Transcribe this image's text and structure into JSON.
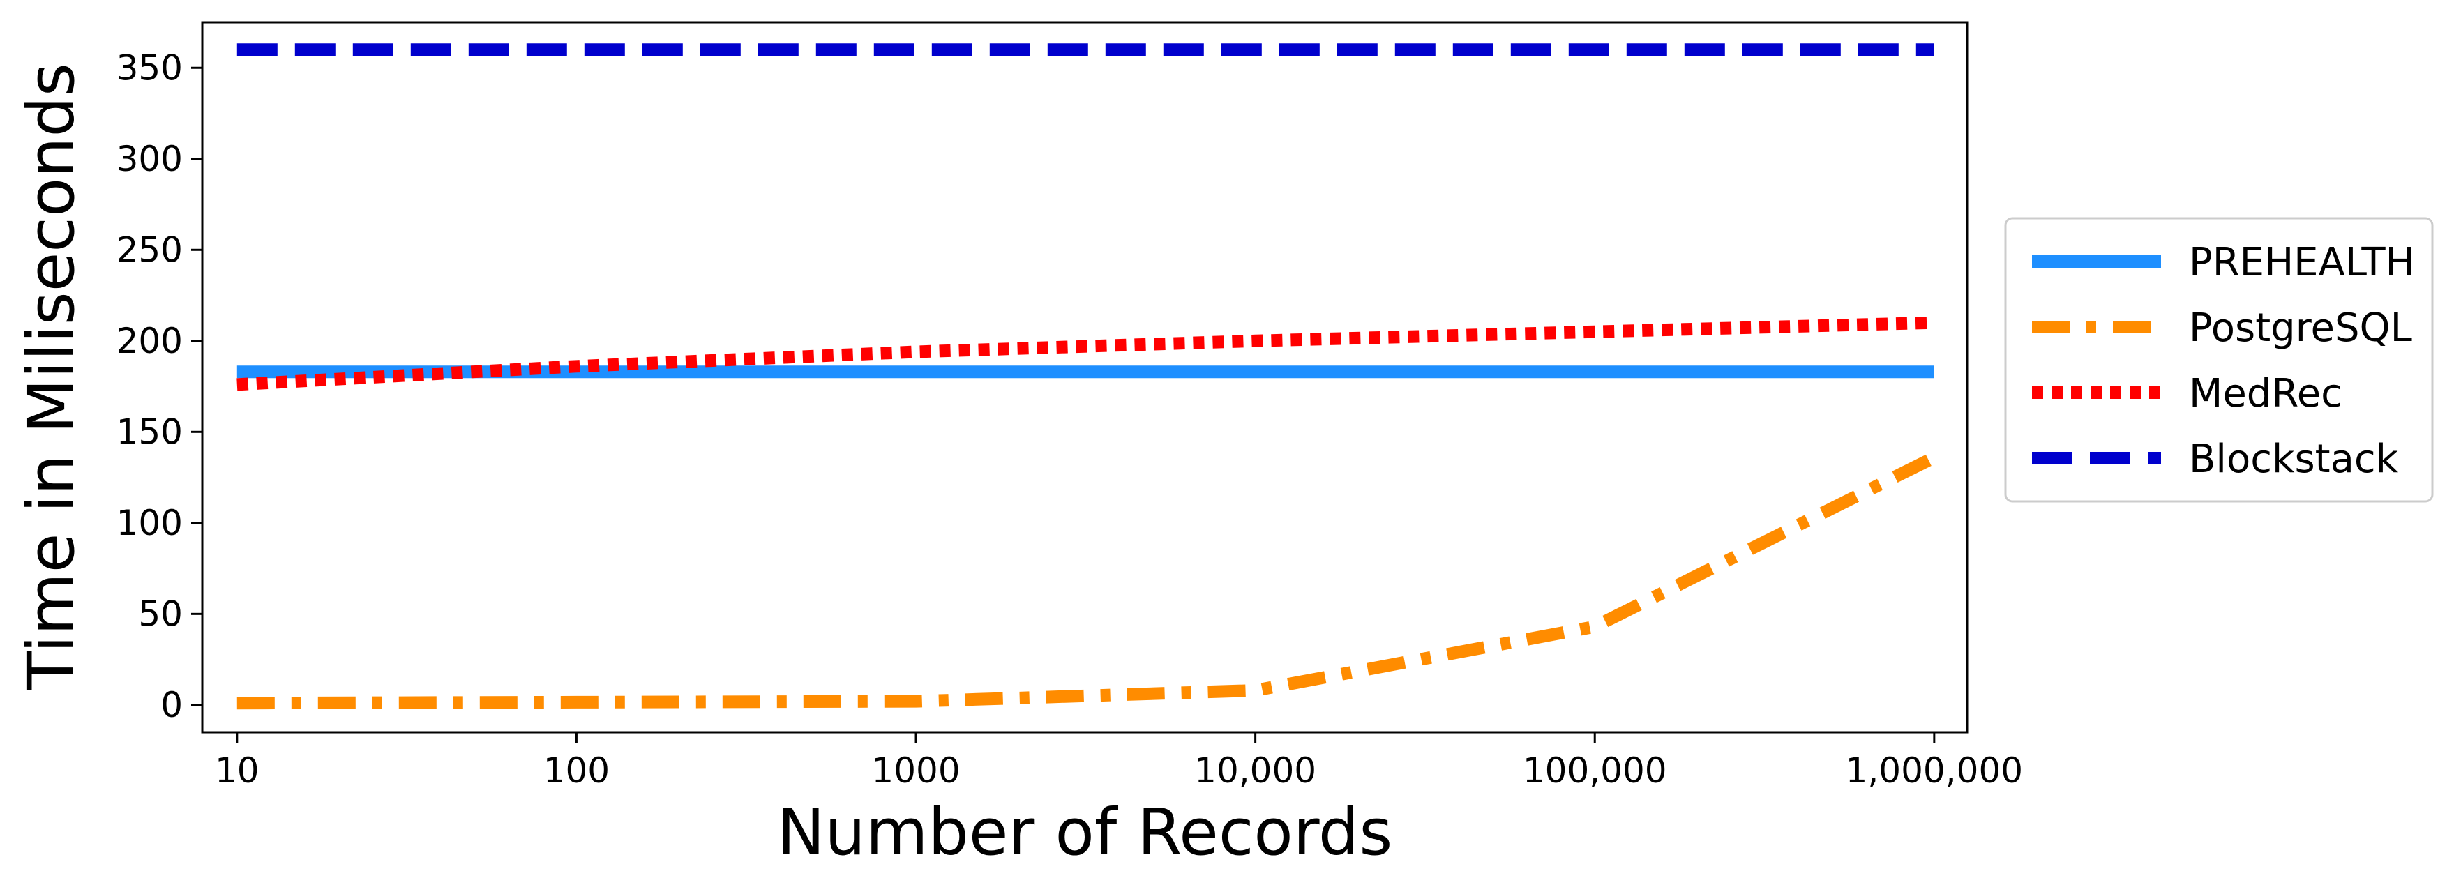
{
  "chart_data": {
    "type": "line",
    "xlabel": "Number of Records",
    "ylabel": "Time in Miliseconds",
    "x_scale": "log",
    "x_ticks": [
      {
        "value": 10,
        "label": "10"
      },
      {
        "value": 100,
        "label": "100"
      },
      {
        "value": 1000,
        "label": "1000"
      },
      {
        "value": 10000,
        "label": "10,000"
      },
      {
        "value": 100000,
        "label": "100,000"
      },
      {
        "value": 1000000,
        "label": "1,000,000"
      }
    ],
    "y_ticks": [
      0,
      50,
      100,
      150,
      200,
      250,
      300,
      350
    ],
    "ylim": [
      -15,
      375
    ],
    "xlim": [
      7.9,
      1250000
    ],
    "grid": false,
    "legend_position": "outside-right",
    "series": [
      {
        "name": "PREHEALTH",
        "color": "#1e8fff",
        "style": "solid",
        "x": [
          10,
          100,
          1000,
          10000,
          100000,
          1000000
        ],
        "y": [
          183,
          183,
          183,
          183,
          183,
          183
        ]
      },
      {
        "name": "PostgreSQL",
        "color": "#ff8c00",
        "style": "dashdot",
        "x": [
          10,
          100,
          1000,
          10000,
          100000,
          1000000
        ],
        "y": [
          1,
          1.5,
          2,
          8,
          43,
          136
        ]
      },
      {
        "name": "MedRec",
        "color": "#ff0000",
        "style": "dotted",
        "x": [
          10,
          100,
          1000,
          10000,
          100000,
          1000000
        ],
        "y": [
          176,
          186,
          194,
          200,
          205,
          210
        ]
      },
      {
        "name": "Blockstack",
        "color": "#0000cd",
        "style": "dashed",
        "x": [
          10,
          100,
          1000,
          10000,
          100000,
          1000000
        ],
        "y": [
          360,
          360,
          360,
          360,
          360,
          360
        ]
      }
    ]
  }
}
